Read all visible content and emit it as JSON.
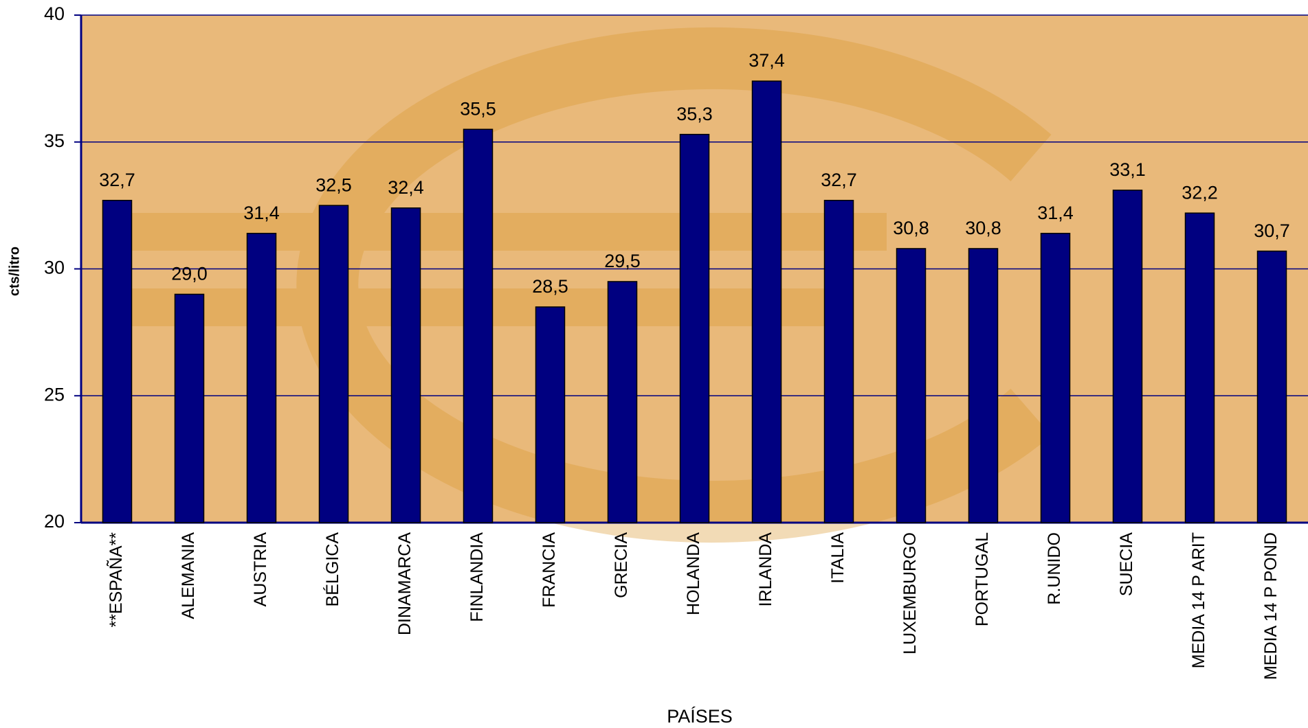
{
  "chart_data": {
    "type": "bar",
    "x_label": "PAÍSES",
    "y_label": "cts/litro",
    "categories": [
      "**ESPAÑA**",
      "ALEMANIA",
      "AUSTRIA",
      "BÉLGICA",
      "DINAMARCA",
      "FINLANDIA",
      "FRANCIA",
      "GRECIA",
      "HOLANDA",
      "IRLANDA",
      "ITALIA",
      "LUXEMBURGO",
      "PORTUGAL",
      "R.UNIDO",
      "SUECIA",
      "MEDIA 14 P ARIT",
      "MEDIA 14 P POND"
    ],
    "values": [
      32.7,
      29.0,
      31.4,
      32.5,
      32.4,
      35.5,
      28.5,
      29.5,
      35.3,
      37.4,
      32.7,
      30.8,
      30.8,
      31.4,
      33.1,
      32.2,
      30.7
    ],
    "value_labels": [
      "32,7",
      "29,0",
      "31,4",
      "32,5",
      "32,4",
      "35,5",
      "28,5",
      "29,5",
      "35,3",
      "37,4",
      "32,7",
      "30,8",
      "30,8",
      "31,4",
      "33,1",
      "32,2",
      "30,7"
    ],
    "color": "#000080",
    "ylim": [
      20,
      40
    ],
    "yticks": [
      20,
      25,
      30,
      35,
      40
    ],
    "grid": true
  }
}
